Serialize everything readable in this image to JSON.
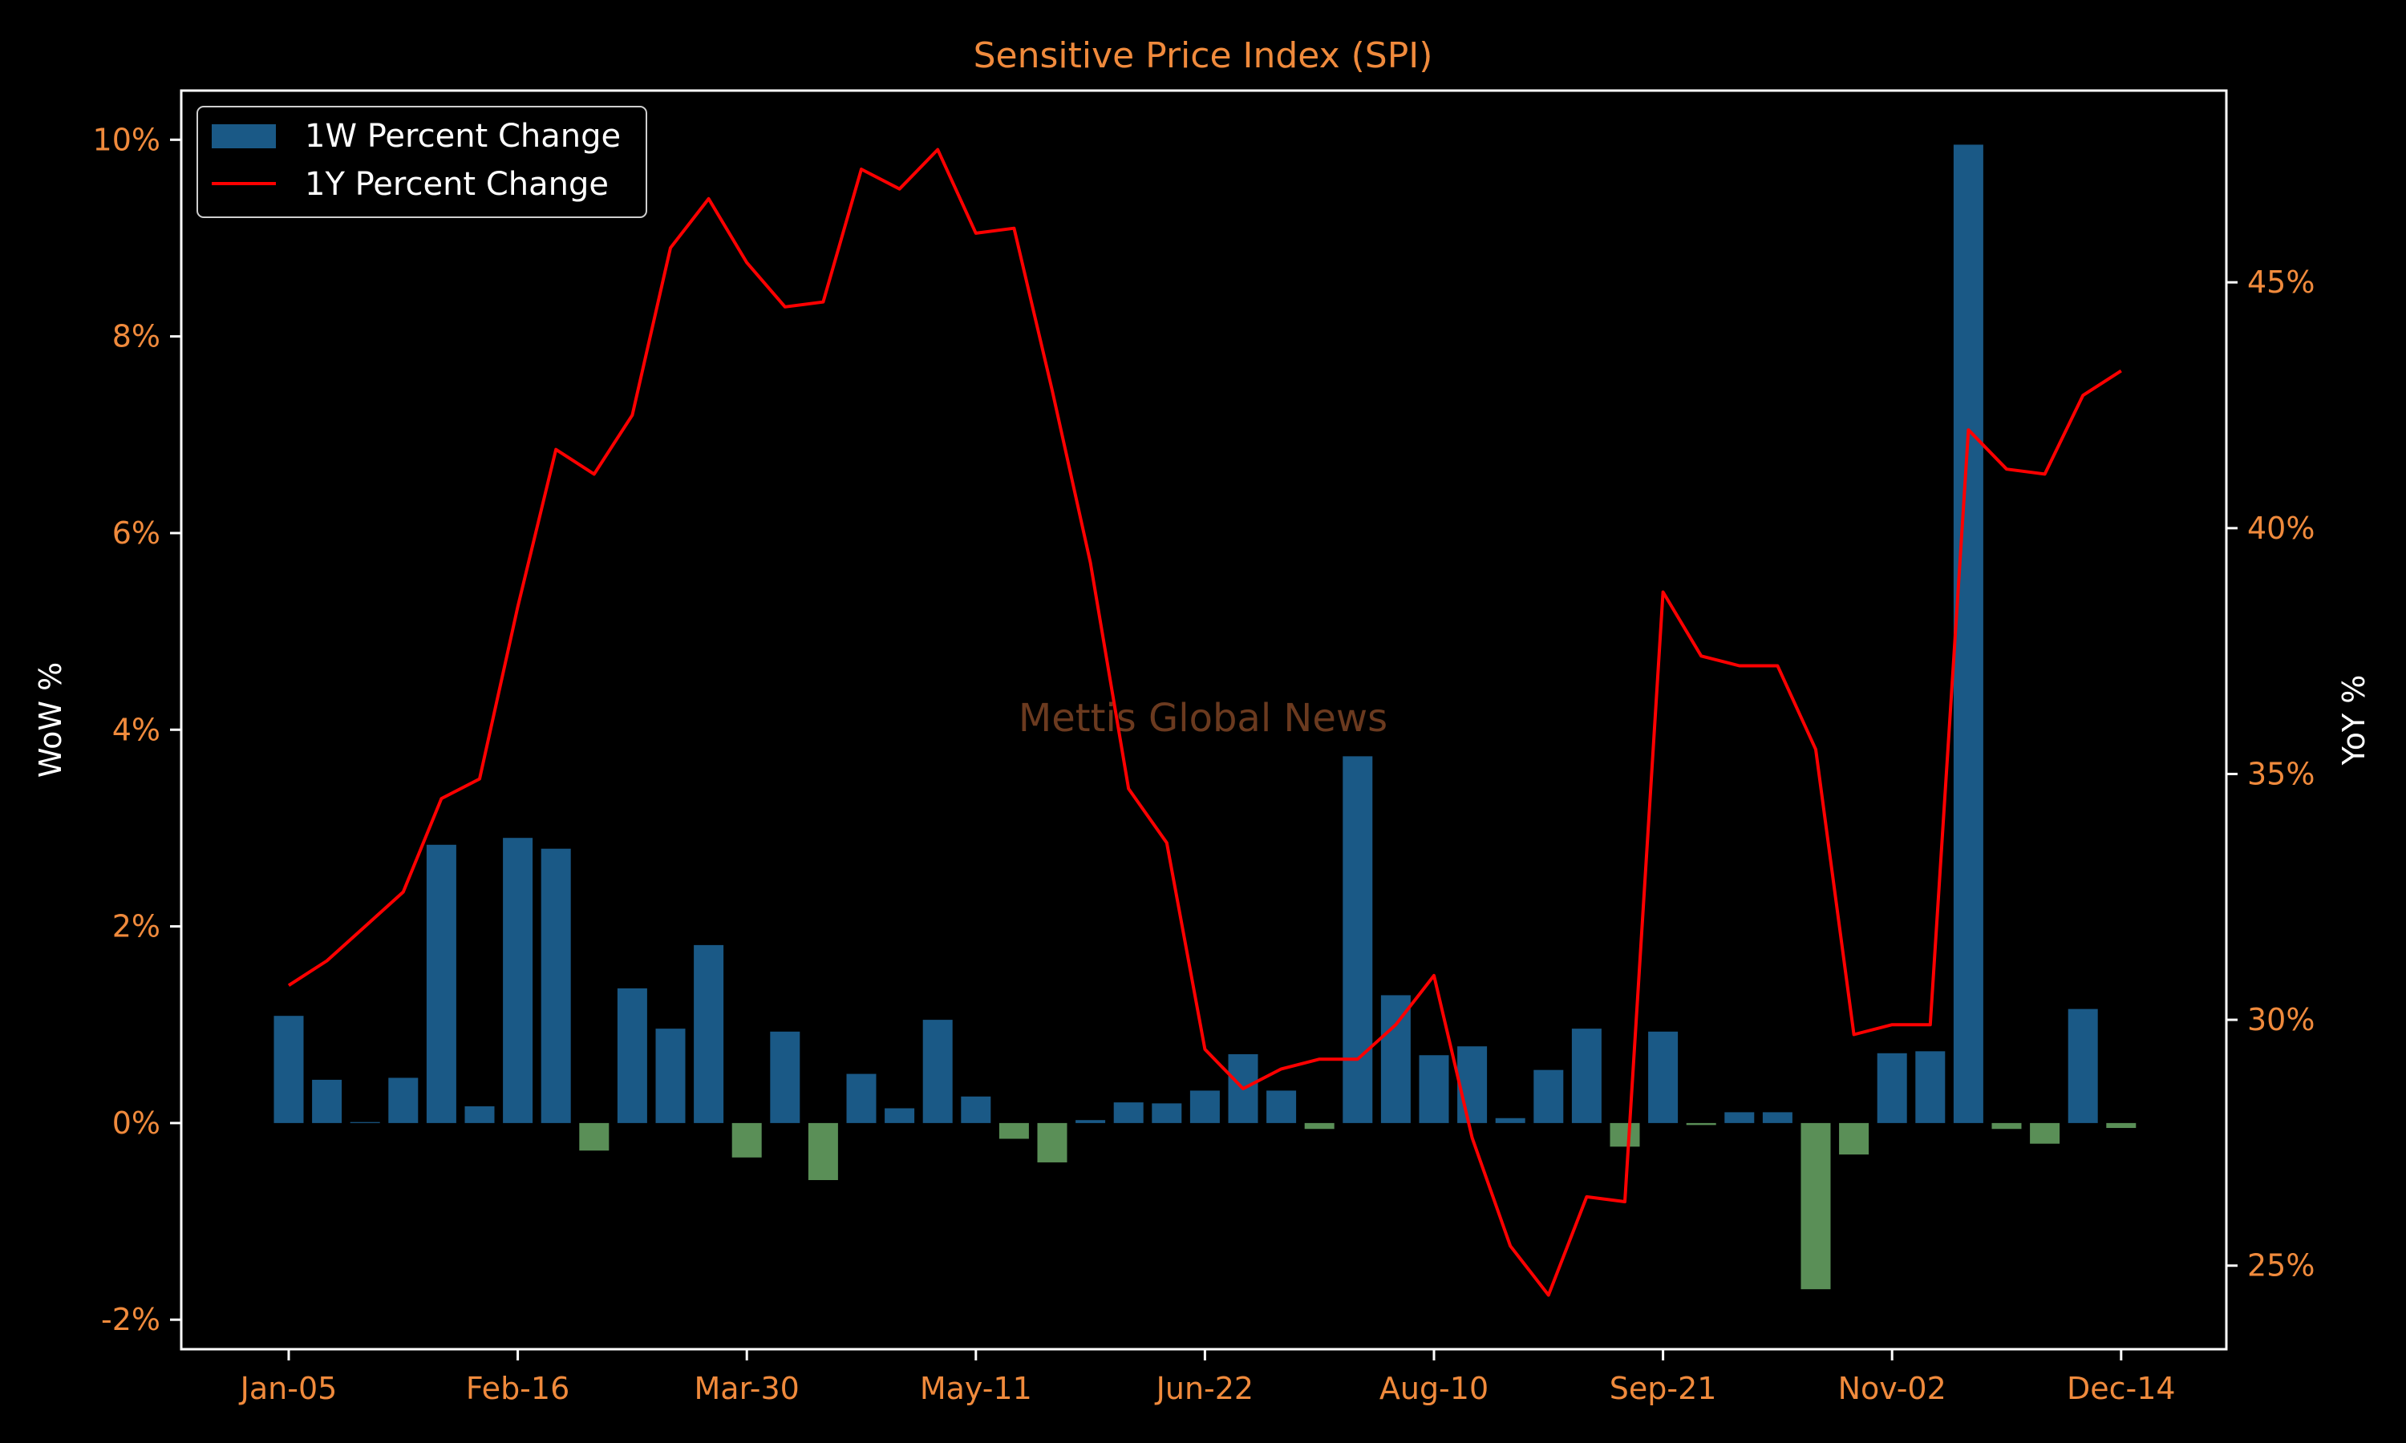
{
  "colors": {
    "background": "#000000",
    "axis": "#ffffff",
    "tick_text": "#f08a3c",
    "title": "#f08a3c",
    "bar_positive": "#1a5986",
    "bar_negative": "#5a8f57",
    "line": "#ff0000",
    "watermark": "#6b3a1f"
  },
  "chart_data": {
    "type": "bar",
    "title": "Sensitive Price Index (SPI)",
    "watermark": "Mettis Global News",
    "ylabel_left": "WoW %",
    "ylabel_right": "YoY %",
    "ylim_left": [
      -2.3,
      10.5
    ],
    "ylim_right": [
      23.3,
      48.9
    ],
    "grid": false,
    "legend_placement": "top-left",
    "legend": [
      {
        "label": "1W Percent Change",
        "kind": "bar"
      },
      {
        "label": "1Y Percent Change",
        "kind": "line"
      }
    ],
    "x_tick_labels": [
      "Jan-05",
      "Feb-16",
      "Mar-30",
      "May-11",
      "Jun-22",
      "Aug-10",
      "Sep-21",
      "Nov-02",
      "Dec-14"
    ],
    "x_tick_index": [
      0,
      6,
      12,
      18,
      24,
      30,
      36,
      42,
      48
    ],
    "left_ticks": [
      {
        "value": -2,
        "label": "-2%"
      },
      {
        "value": 0,
        "label": "0%"
      },
      {
        "value": 2,
        "label": "2%"
      },
      {
        "value": 4,
        "label": "4%"
      },
      {
        "value": 6,
        "label": "6%"
      },
      {
        "value": 8,
        "label": "8%"
      },
      {
        "value": 10,
        "label": "10%"
      }
    ],
    "right_ticks": [
      {
        "value": 25,
        "label": "25%"
      },
      {
        "value": 30,
        "label": "30%"
      },
      {
        "value": 35,
        "label": "35%"
      },
      {
        "value": 40,
        "label": "40%"
      },
      {
        "value": 45,
        "label": "45%"
      }
    ],
    "series": [
      {
        "name": "1W Percent Change",
        "axis": "left",
        "kind": "bar",
        "values": [
          1.09,
          0.44,
          0.01,
          0.46,
          2.83,
          0.17,
          2.9,
          2.79,
          -0.28,
          1.37,
          0.96,
          1.81,
          -0.35,
          0.93,
          -0.58,
          0.5,
          0.15,
          1.05,
          0.27,
          -0.16,
          -0.4,
          0.03,
          0.21,
          0.2,
          0.33,
          0.7,
          0.33,
          -0.06,
          3.73,
          1.3,
          0.69,
          0.78,
          0.05,
          0.54,
          0.96,
          -0.24,
          0.93,
          -0.02,
          0.11,
          0.11,
          -1.69,
          -0.32,
          0.71,
          0.73,
          9.95,
          -0.06,
          -0.21,
          1.16,
          -0.05
        ]
      },
      {
        "name": "1Y Percent Change",
        "axis": "right",
        "kind": "line",
        "values": [
          30.7,
          31.2,
          31.9,
          32.6,
          34.5,
          34.9,
          38.4,
          41.6,
          41.1,
          42.3,
          45.7,
          46.7,
          45.4,
          44.5,
          44.6,
          47.3,
          46.9,
          47.7,
          46.0,
          46.1,
          42.8,
          39.3,
          34.7,
          33.6,
          29.4,
          28.6,
          29.0,
          29.2,
          29.2,
          29.9,
          30.9,
          27.6,
          25.4,
          24.4,
          26.4,
          26.3,
          38.7,
          37.4,
          37.2,
          37.2,
          35.5,
          29.7,
          29.9,
          29.9,
          42.0,
          41.2,
          41.1,
          42.7,
          43.2
        ]
      }
    ]
  }
}
